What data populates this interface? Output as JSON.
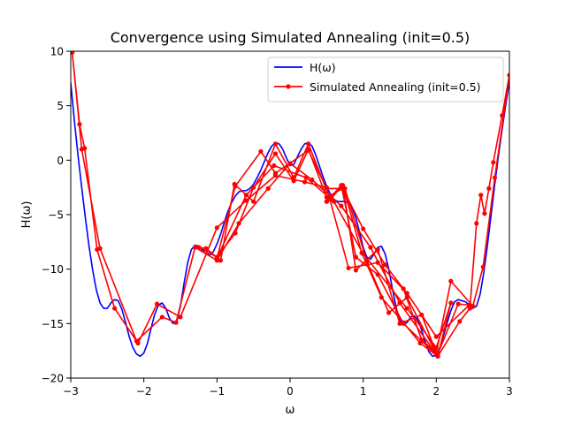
{
  "chart_data": {
    "type": "line",
    "title": "Convergence using Simulated Annealing (init=0.5)",
    "xlabel": "ω",
    "ylabel": "H(ω)",
    "xlim": [
      -3,
      3
    ],
    "ylim": [
      -20,
      10
    ],
    "xticks": [
      -3,
      -2,
      -1,
      0,
      1,
      2,
      3
    ],
    "xtick_labels": [
      "−3",
      "−2",
      "−1",
      "0",
      "1",
      "2",
      "3"
    ],
    "yticks": [
      -20,
      -15,
      -10,
      -5,
      0,
      5,
      10
    ],
    "ytick_labels": [
      "−20",
      "−15",
      "−10",
      "−5",
      "0",
      "5",
      "10"
    ],
    "grid": false,
    "legend_position": "top-right",
    "series": [
      {
        "name": "H(ω)",
        "color": "#0000ff",
        "marker": "none",
        "x": [
          -3.0,
          -2.95,
          -2.9,
          -2.85,
          -2.8,
          -2.75,
          -2.7,
          -2.65,
          -2.6,
          -2.55,
          -2.5,
          -2.45,
          -2.4,
          -2.35,
          -2.3,
          -2.25,
          -2.2,
          -2.15,
          -2.1,
          -2.05,
          -2.0,
          -1.95,
          -1.9,
          -1.85,
          -1.8,
          -1.75,
          -1.7,
          -1.65,
          -1.6,
          -1.55,
          -1.5,
          -1.45,
          -1.4,
          -1.35,
          -1.3,
          -1.25,
          -1.2,
          -1.15,
          -1.1,
          -1.05,
          -1.0,
          -0.95,
          -0.9,
          -0.85,
          -0.8,
          -0.75,
          -0.7,
          -0.65,
          -0.6,
          -0.55,
          -0.5,
          -0.45,
          -0.4,
          -0.35,
          -0.3,
          -0.25,
          -0.2,
          -0.15,
          -0.1,
          -0.05,
          0.0,
          0.05,
          0.1,
          0.15,
          0.2,
          0.25,
          0.3,
          0.35,
          0.4,
          0.45,
          0.5,
          0.55,
          0.6,
          0.65,
          0.7,
          0.75,
          0.8,
          0.85,
          0.9,
          0.95,
          1.0,
          1.05,
          1.1,
          1.15,
          1.2,
          1.25,
          1.3,
          1.35,
          1.4,
          1.45,
          1.5,
          1.55,
          1.6,
          1.65,
          1.7,
          1.75,
          1.8,
          1.85,
          1.9,
          1.95,
          2.0,
          2.05,
          2.1,
          2.15,
          2.2,
          2.25,
          2.3,
          2.35,
          2.4,
          2.45,
          2.5,
          2.55,
          2.6,
          2.65,
          2.7,
          2.75,
          2.8,
          2.85,
          2.9,
          2.95,
          3.0
        ],
        "y": [
          7.1,
          3.6,
          0.4,
          -2.5,
          -5.3,
          -7.9,
          -10.1,
          -11.9,
          -13.1,
          -13.6,
          -13.6,
          -13.1,
          -12.8,
          -12.9,
          -13.7,
          -14.9,
          -16.2,
          -17.2,
          -17.8,
          -18.0,
          -17.7,
          -16.8,
          -15.4,
          -14.1,
          -13.3,
          -13.1,
          -13.6,
          -14.5,
          -15.0,
          -14.8,
          -13.4,
          -11.3,
          -9.4,
          -8.2,
          -7.8,
          -7.9,
          -8.3,
          -8.6,
          -8.7,
          -8.4,
          -7.7,
          -6.8,
          -5.7,
          -4.7,
          -3.9,
          -3.3,
          -2.9,
          -2.8,
          -2.8,
          -2.6,
          -2.2,
          -1.6,
          -0.9,
          -0.1,
          0.7,
          1.3,
          1.6,
          1.5,
          1.0,
          0.2,
          -0.5,
          -0.4,
          0.3,
          1.0,
          1.5,
          1.6,
          1.3,
          0.5,
          -0.5,
          -1.5,
          -2.4,
          -3.1,
          -3.6,
          -3.8,
          -3.8,
          -3.8,
          -3.9,
          -4.4,
          -5.3,
          -6.6,
          -8.0,
          -8.9,
          -9.1,
          -8.6,
          -8.0,
          -7.9,
          -8.6,
          -10.0,
          -11.8,
          -13.5,
          -14.7,
          -15.1,
          -14.9,
          -14.4,
          -14.3,
          -14.7,
          -15.6,
          -16.7,
          -17.6,
          -18.0,
          -17.9,
          -17.2,
          -16.1,
          -14.9,
          -13.8,
          -13.0,
          -12.8,
          -12.9,
          -13.0,
          -13.3,
          -13.6,
          -13.4,
          -12.3,
          -10.3,
          -7.8,
          -5.0,
          -2.2,
          0.4,
          2.8,
          5.1,
          7.3
        ]
      },
      {
        "name": "Simulated Annealing (init=0.5)",
        "color": "#ff0000",
        "marker": "circle",
        "x": [
          0.5,
          0.72,
          0.98,
          1.25,
          1.55,
          1.78,
          2.02,
          2.32,
          2.46,
          2.55,
          2.61,
          2.66,
          2.72,
          2.78,
          2.9,
          3.0,
          2.8,
          2.64,
          2.5,
          2.2,
          2.0,
          1.8,
          1.5,
          1.2,
          0.9,
          0.72,
          0.55,
          0.25,
          0.05,
          -0.2,
          -0.5,
          -0.76,
          -0.95,
          -1.15,
          -1.25,
          -1.0,
          -0.75,
          -0.5,
          -0.2,
          0.05,
          0.25,
          0.5,
          0.72,
          1.0,
          1.3,
          1.55,
          1.8,
          2.02,
          2.3,
          2.45,
          2.0,
          1.6,
          1.2,
          0.8,
          0.5,
          0.2,
          -0.2,
          -0.6,
          -1.0,
          -1.5,
          -1.82,
          -2.08,
          -2.4,
          -2.64,
          -2.81,
          -2.88,
          -2.98,
          -2.85,
          -2.6,
          -2.1,
          -1.75,
          -1.56,
          -1.3,
          -1.0,
          -0.7,
          -0.3,
          0.0,
          0.3,
          0.7,
          1.1,
          1.5,
          2.02,
          2.2,
          2.0,
          1.6,
          1.0,
          0.6,
          0.22,
          -0.22,
          -0.6,
          -1.0,
          -0.75,
          -0.4,
          -0.2,
          0.25,
          0.5,
          0.75,
          1.05,
          1.35,
          1.6,
          2.02,
          1.55,
          1.2,
          0.9,
          0.7,
          0.5
        ],
        "y": [
          -3.8,
          -2.3,
          -8.5,
          -12.6,
          -14.9,
          -16.8,
          -18.0,
          -14.8,
          -13.6,
          -5.8,
          -3.2,
          -4.9,
          -2.6,
          -0.2,
          4.1,
          7.8,
          -1.6,
          -9.8,
          -13.4,
          -11.1,
          -17.7,
          -14.2,
          -15.0,
          -8.2,
          -10.1,
          -2.3,
          -3.6,
          1.5,
          -1.6,
          1.5,
          -3.8,
          -2.2,
          -9.2,
          -8.1,
          -8.0,
          -8.9,
          -6.7,
          -2.5,
          0.6,
          -1.9,
          1.0,
          -3.4,
          -2.6,
          -6.3,
          -9.6,
          -11.8,
          -16.5,
          -17.8,
          -13.2,
          -13.3,
          -16.2,
          -12.2,
          -9.4,
          -9.9,
          -2.5,
          -2.0,
          -1.4,
          -3.7,
          -6.2,
          -14.4,
          -13.2,
          -16.8,
          -13.6,
          -8.2,
          1.1,
          3.3,
          9.9,
          1.0,
          -8.1,
          -16.6,
          -14.4,
          -14.9,
          -8.0,
          -9.2,
          -5.8,
          -2.6,
          -0.3,
          -1.8,
          -4.2,
          -8.0,
          -13.1,
          -18.0,
          -13.1,
          -17.2,
          -13.6,
          -8.6,
          -3.8,
          -1.6,
          -0.5,
          -3.2,
          -9.0,
          -2.4,
          0.8,
          -1.2,
          0.9,
          -2.6,
          -2.6,
          -9.3,
          -14.0,
          -12.6,
          -18.0,
          -15.0,
          -10.5,
          -8.9,
          -2.3,
          -3.8
        ]
      }
    ]
  }
}
